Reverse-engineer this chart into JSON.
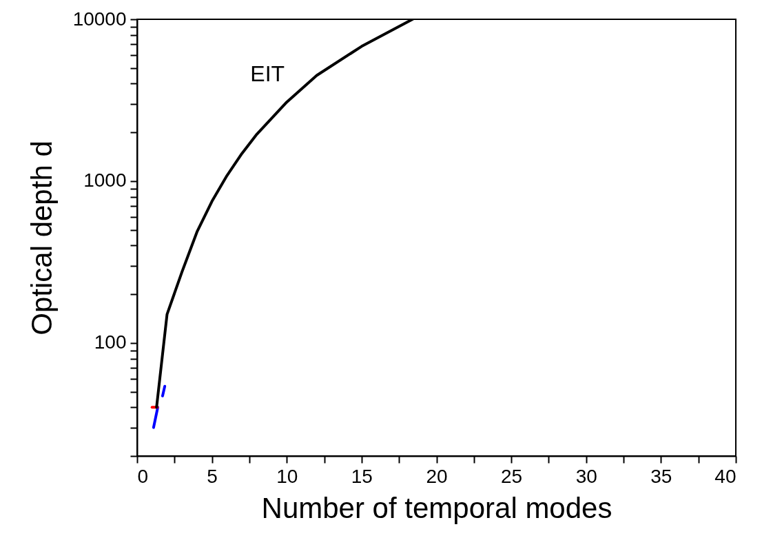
{
  "chart_data": {
    "type": "line",
    "xlabel": "Number of temporal modes",
    "ylabel": "Optical depth d",
    "log": "y",
    "grid": false,
    "legend": false,
    "marker": "none",
    "line_style": "solid",
    "xlim": [
      0,
      40
    ],
    "ylim": [
      20,
      10000
    ],
    "xticks": [
      0,
      {
        "value": 2.5,
        "label": null
      },
      5,
      {
        "value": 7.5,
        "label": null
      },
      10,
      {
        "value": 12.5,
        "label": null
      },
      15,
      {
        "value": 17.5,
        "label": null
      },
      20,
      {
        "value": 22.5,
        "label": null
      },
      25,
      {
        "value": 27.5,
        "label": null
      },
      30,
      {
        "value": 32.5,
        "label": null
      },
      35,
      {
        "value": 37.5,
        "label": null
      },
      40
    ],
    "yticks": [
      {
        "value": 20,
        "label": null
      },
      {
        "value": 30,
        "label": null
      },
      {
        "value": 40,
        "label": null
      },
      {
        "value": 50,
        "label": null
      },
      {
        "value": 60,
        "label": null
      },
      {
        "value": 70,
        "label": null
      },
      {
        "value": 80,
        "label": null
      },
      {
        "value": 90,
        "label": null
      },
      100,
      {
        "value": 200,
        "label": null
      },
      {
        "value": 300,
        "label": null
      },
      {
        "value": 400,
        "label": null
      },
      {
        "value": 500,
        "label": null
      },
      {
        "value": 600,
        "label": null
      },
      {
        "value": 700,
        "label": null
      },
      {
        "value": 800,
        "label": null
      },
      {
        "value": 900,
        "label": null
      },
      1000,
      {
        "value": 2000,
        "label": null
      },
      {
        "value": 3000,
        "label": null
      },
      {
        "value": 4000,
        "label": null
      },
      {
        "value": 5000,
        "label": null
      },
      {
        "value": 6000,
        "label": null
      },
      {
        "value": 7000,
        "label": null
      },
      {
        "value": 8000,
        "label": null
      },
      {
        "value": 9000,
        "label": null
      },
      10000
    ],
    "series": [
      {
        "color": "#0000ff",
        "x": [
          1.1,
          1.38,
          1.6,
          1.7,
          1.85
        ],
        "values": [
          30,
          40,
          null,
          47,
          54
        ]
      },
      {
        "color": "#ff0000",
        "x": [
          1.0,
          1.35
        ],
        "values": [
          40,
          40
        ]
      },
      {
        "name": "EIT",
        "color": "#000000",
        "x": [
          1.3,
          2,
          3,
          4,
          5,
          6,
          7,
          8,
          10,
          12,
          15,
          18.4
        ],
        "values": [
          40,
          150,
          275,
          485,
          750,
          1080,
          1480,
          1950,
          3080,
          4500,
          6800,
          10000
        ]
      }
    ]
  }
}
